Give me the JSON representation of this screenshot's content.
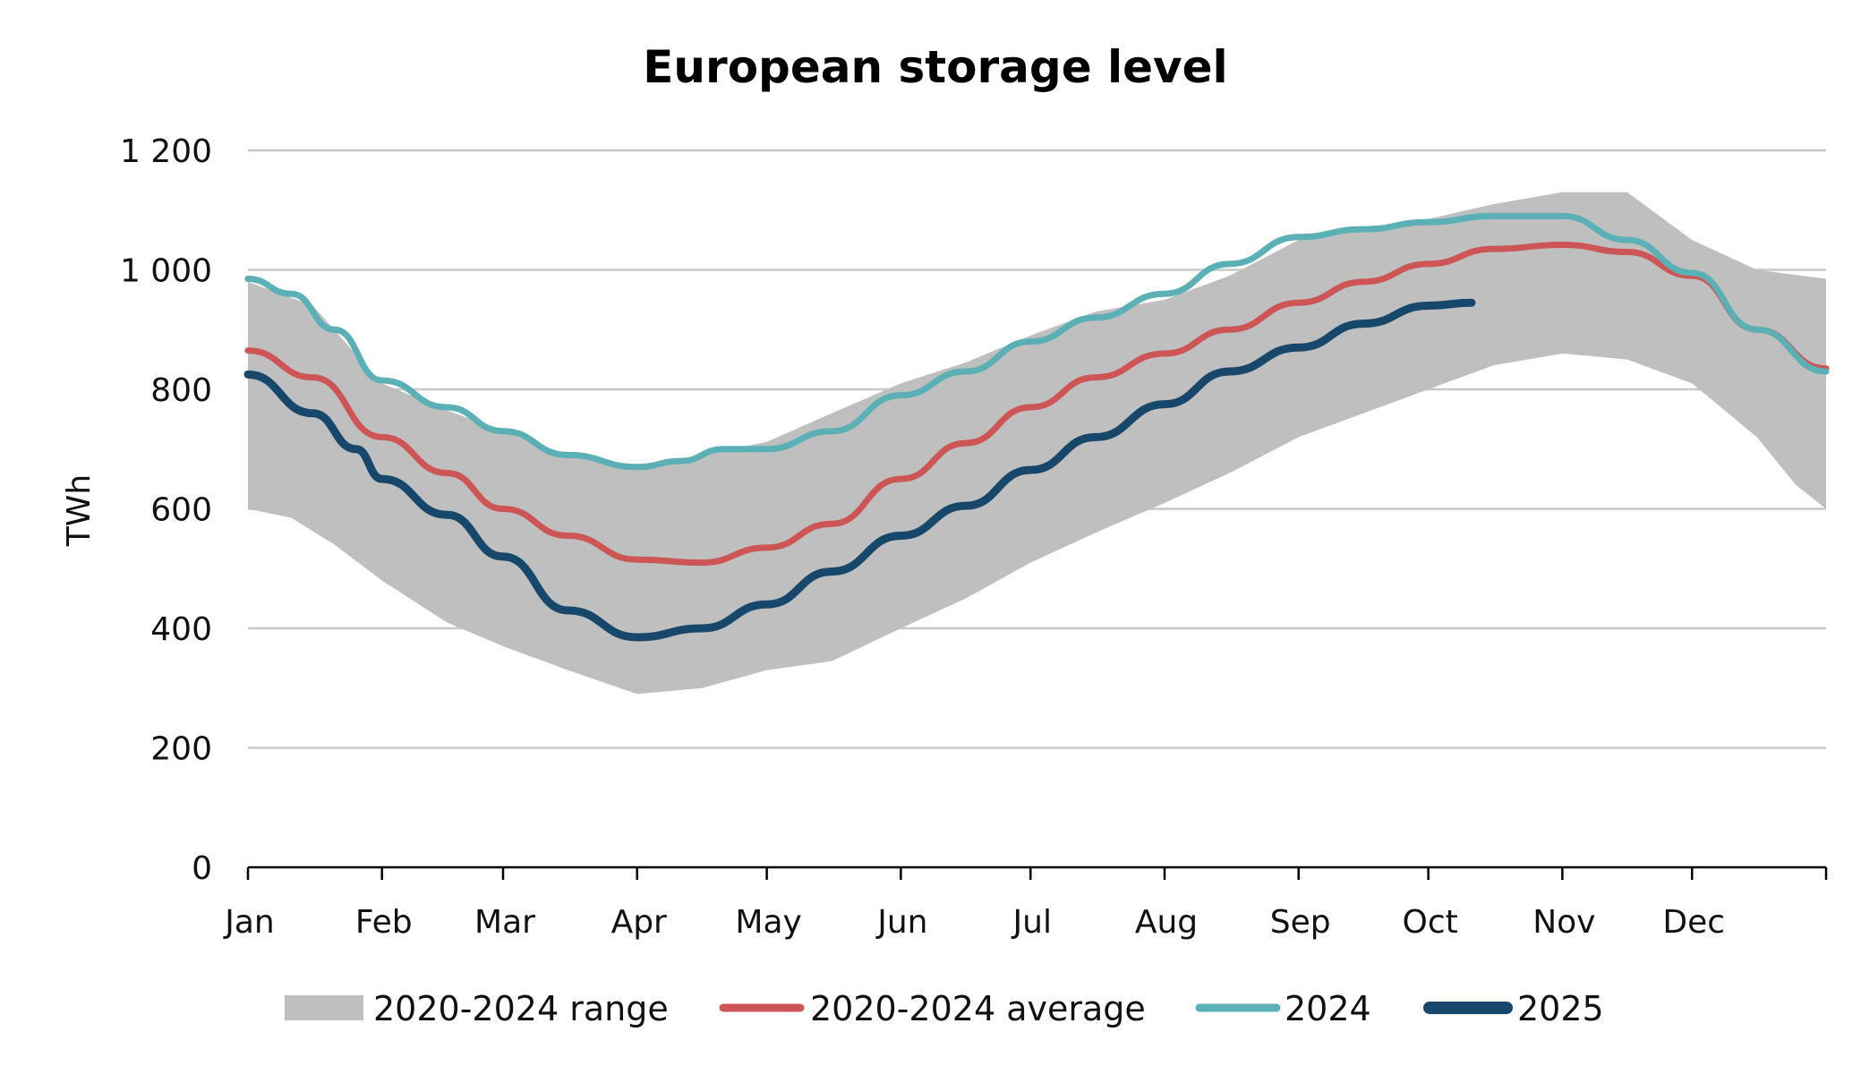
{
  "chart_data": {
    "type": "line",
    "title": "European storage level",
    "xlabel": "",
    "ylabel": "TWh",
    "ylim": [
      0,
      1200
    ],
    "xlim": [
      0,
      365
    ],
    "yticks": [
      0,
      200,
      400,
      600,
      800,
      1000,
      1200
    ],
    "ytick_labels": [
      "0",
      "200",
      "400",
      "600",
      "800",
      "1 000",
      "1 200"
    ],
    "xtick_labels": [
      "Jan",
      "Feb",
      "Mar",
      "Apr",
      "May",
      "Jun",
      "Jul",
      "Aug",
      "Sep",
      "Oct",
      "Nov",
      "Dec"
    ],
    "xtick_days": [
      0,
      31,
      59,
      90,
      120,
      151,
      181,
      212,
      243,
      273,
      304,
      334
    ],
    "grid": true,
    "legend_position": "bottom",
    "range": {
      "name": "2020-2024 range",
      "color": "#bfbfbf",
      "upper": [
        [
          0,
          980
        ],
        [
          15,
          940
        ],
        [
          31,
          810
        ],
        [
          46,
          765
        ],
        [
          59,
          730
        ],
        [
          74,
          690
        ],
        [
          90,
          670
        ],
        [
          105,
          690
        ],
        [
          120,
          712
        ],
        [
          135,
          760
        ],
        [
          151,
          810
        ],
        [
          166,
          845
        ],
        [
          181,
          890
        ],
        [
          196,
          930
        ],
        [
          212,
          950
        ],
        [
          227,
          990
        ],
        [
          243,
          1050
        ],
        [
          258,
          1070
        ],
        [
          273,
          1085
        ],
        [
          288,
          1110
        ],
        [
          304,
          1130
        ],
        [
          319,
          1130
        ],
        [
          334,
          1050
        ],
        [
          349,
          1000
        ],
        [
          365,
          985
        ]
      ],
      "lower": [
        [
          0,
          600
        ],
        [
          10,
          585
        ],
        [
          20,
          540
        ],
        [
          31,
          480
        ],
        [
          46,
          410
        ],
        [
          59,
          370
        ],
        [
          74,
          330
        ],
        [
          90,
          290
        ],
        [
          105,
          300
        ],
        [
          120,
          330
        ],
        [
          135,
          345
        ],
        [
          151,
          400
        ],
        [
          166,
          450
        ],
        [
          181,
          510
        ],
        [
          196,
          560
        ],
        [
          212,
          610
        ],
        [
          227,
          660
        ],
        [
          243,
          720
        ],
        [
          258,
          760
        ],
        [
          273,
          800
        ],
        [
          288,
          840
        ],
        [
          304,
          860
        ],
        [
          319,
          850
        ],
        [
          334,
          810
        ],
        [
          349,
          720
        ],
        [
          358,
          640
        ],
        [
          365,
          600
        ]
      ]
    },
    "series": [
      {
        "name": "2020-2024 average",
        "color": "#cd5555",
        "width": 7,
        "points": [
          [
            0,
            865
          ],
          [
            15,
            820
          ],
          [
            31,
            720
          ],
          [
            46,
            660
          ],
          [
            59,
            600
          ],
          [
            74,
            555
          ],
          [
            90,
            515
          ],
          [
            105,
            510
          ],
          [
            120,
            535
          ],
          [
            135,
            575
          ],
          [
            151,
            650
          ],
          [
            166,
            710
          ],
          [
            181,
            770
          ],
          [
            196,
            820
          ],
          [
            212,
            860
          ],
          [
            227,
            900
          ],
          [
            243,
            945
          ],
          [
            258,
            980
          ],
          [
            273,
            1010
          ],
          [
            288,
            1035
          ],
          [
            304,
            1042
          ],
          [
            319,
            1030
          ],
          [
            334,
            990
          ],
          [
            349,
            900
          ],
          [
            365,
            835
          ]
        ]
      },
      {
        "name": "2024",
        "color": "#5bb0b5",
        "width": 7,
        "points": [
          [
            0,
            985
          ],
          [
            10,
            960
          ],
          [
            20,
            900
          ],
          [
            31,
            815
          ],
          [
            46,
            770
          ],
          [
            59,
            730
          ],
          [
            74,
            690
          ],
          [
            90,
            670
          ],
          [
            100,
            680
          ],
          [
            110,
            700
          ],
          [
            120,
            700
          ],
          [
            135,
            730
          ],
          [
            151,
            790
          ],
          [
            166,
            830
          ],
          [
            181,
            880
          ],
          [
            196,
            920
          ],
          [
            212,
            960
          ],
          [
            227,
            1010
          ],
          [
            243,
            1055
          ],
          [
            258,
            1068
          ],
          [
            273,
            1080
          ],
          [
            288,
            1090
          ],
          [
            304,
            1090
          ],
          [
            319,
            1050
          ],
          [
            334,
            995
          ],
          [
            349,
            900
          ],
          [
            365,
            830
          ]
        ]
      },
      {
        "name": "2025",
        "color": "#17476b",
        "width": 9,
        "points": [
          [
            0,
            825
          ],
          [
            15,
            760
          ],
          [
            25,
            700
          ],
          [
            31,
            650
          ],
          [
            46,
            590
          ],
          [
            59,
            520
          ],
          [
            74,
            430
          ],
          [
            90,
            385
          ],
          [
            105,
            400
          ],
          [
            120,
            440
          ],
          [
            135,
            495
          ],
          [
            151,
            555
          ],
          [
            166,
            605
          ],
          [
            181,
            665
          ],
          [
            196,
            720
          ],
          [
            212,
            775
          ],
          [
            227,
            830
          ],
          [
            243,
            870
          ],
          [
            258,
            910
          ],
          [
            273,
            940
          ],
          [
            283,
            945
          ]
        ]
      }
    ]
  }
}
